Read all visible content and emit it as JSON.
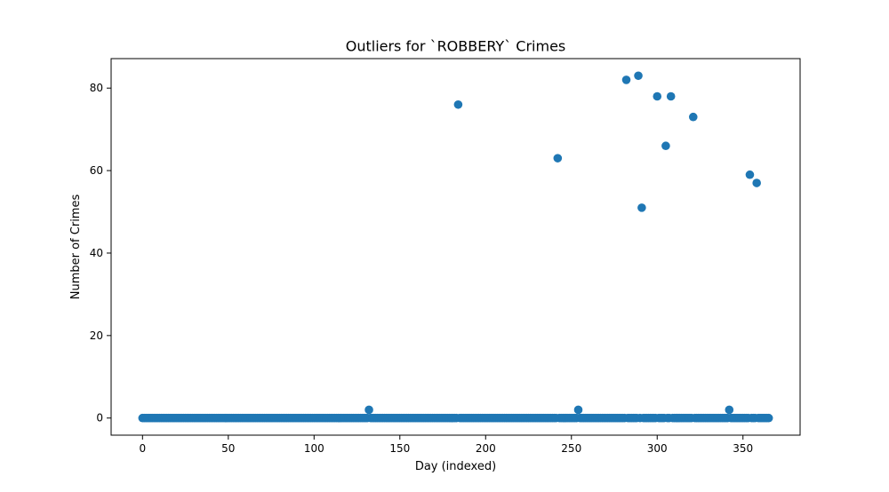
{
  "chart_data": {
    "type": "scatter",
    "title": "Outliers for `ROBBERY` Crimes",
    "xlabel": "Day (indexed)",
    "ylabel": "Number of Crimes",
    "xlim": [
      -18.3,
      383.3
    ],
    "ylim": [
      -4.15,
      87.15
    ],
    "xticks": [
      0,
      50,
      100,
      150,
      200,
      250,
      300,
      350
    ],
    "yticks": [
      0,
      20,
      40,
      60,
      80
    ],
    "grid": false,
    "legend": "none",
    "marker_color": "#1f77b4",
    "zero_range": [
      0,
      365
    ],
    "nonzero_points": [
      {
        "x": 132,
        "y": 2
      },
      {
        "x": 184,
        "y": 76
      },
      {
        "x": 242,
        "y": 63
      },
      {
        "x": 254,
        "y": 2
      },
      {
        "x": 282,
        "y": 82
      },
      {
        "x": 289,
        "y": 83
      },
      {
        "x": 291,
        "y": 51
      },
      {
        "x": 300,
        "y": 78
      },
      {
        "x": 305,
        "y": 66
      },
      {
        "x": 308,
        "y": 78
      },
      {
        "x": 321,
        "y": 73
      },
      {
        "x": 342,
        "y": 2
      },
      {
        "x": 354,
        "y": 59
      },
      {
        "x": 358,
        "y": 57
      }
    ]
  }
}
